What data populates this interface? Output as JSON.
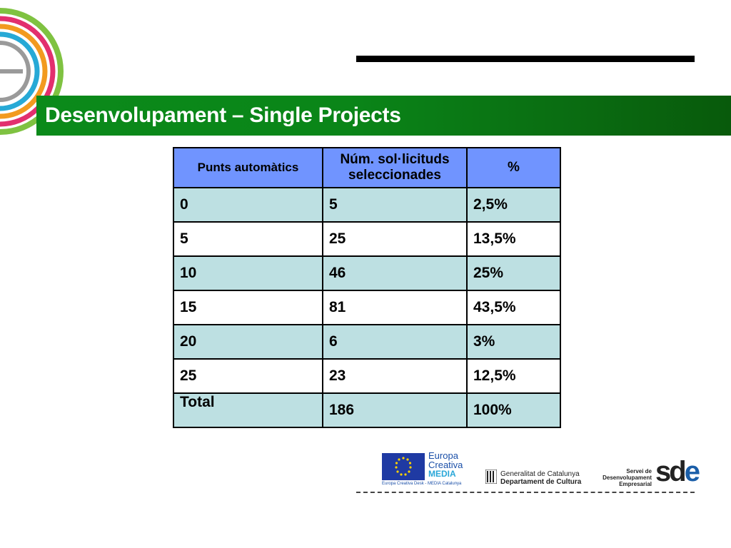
{
  "header": {
    "title": "Desenvolupament – Single Projects"
  },
  "table": {
    "headers": [
      "Punts automàtics",
      "Núm. sol·licituds seleccionades",
      "%"
    ],
    "rows": [
      [
        "0",
        "5",
        "2,5%"
      ],
      [
        "5",
        "25",
        "13,5%"
      ],
      [
        "10",
        "46",
        "25%"
      ],
      [
        "15",
        "81",
        "43,5%"
      ],
      [
        "20",
        "6",
        "3%"
      ],
      [
        "25",
        "23",
        "12,5%"
      ]
    ],
    "total": {
      "label": "Total",
      "count": "186",
      "percent": "100%"
    }
  },
  "footer": {
    "europa_creativa": {
      "line1": "Europa",
      "line2": "Creativa",
      "line3": "MEDIA",
      "desk": "Europa Creativa Desk - MEDIA Catalunya"
    },
    "generalitat": {
      "line1": "Generalitat de Catalunya",
      "line2": "Departament de Cultura"
    },
    "sde": {
      "line1": "Servei de",
      "line2": "Desenvolupament",
      "line3": "Empresarial",
      "logo_s": "sd",
      "logo_e": "e"
    }
  },
  "colors": {
    "title_bar": "#0a8518",
    "table_header": "#7094ff",
    "row_alt": "#bde0e2"
  }
}
